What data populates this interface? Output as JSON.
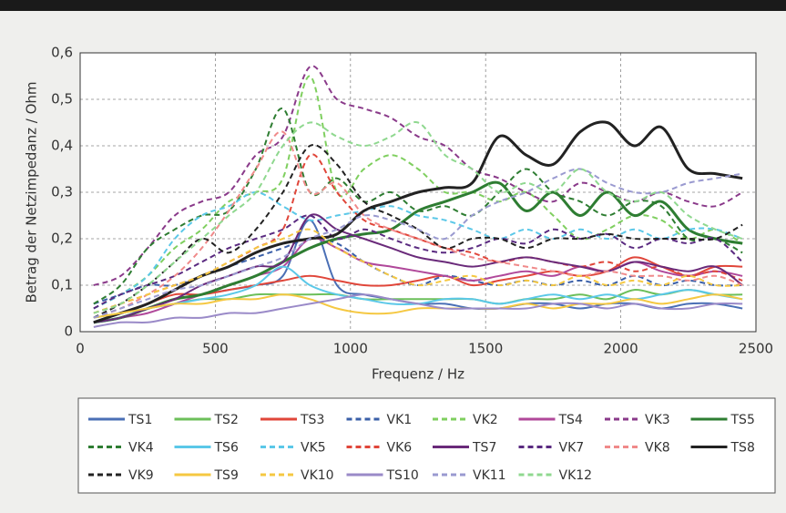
{
  "chart_data": {
    "type": "line",
    "xlabel": "Frequenz / Hz",
    "ylabel": "Betrag der Netzimpedanz / Ohm",
    "x": [
      50,
      150,
      250,
      350,
      450,
      550,
      650,
      750,
      850,
      950,
      1050,
      1150,
      1250,
      1350,
      1450,
      1550,
      1650,
      1750,
      1850,
      1950,
      2050,
      2150,
      2250,
      2350,
      2450
    ],
    "xlim": [
      0,
      2500
    ],
    "xticks": [
      0,
      500,
      1000,
      1500,
      2000,
      2500
    ],
    "ylim": [
      0,
      0.6
    ],
    "yticks": [
      0,
      {
        "value": 0.1,
        "label": "0,1"
      },
      {
        "value": 0.2,
        "label": "0,2"
      },
      {
        "value": 0.3,
        "label": "0,3"
      },
      {
        "value": 0.4,
        "label": "0,4"
      },
      {
        "value": 0.5,
        "label": "0,5"
      },
      {
        "value": 0.6,
        "label": "0,6"
      }
    ],
    "grid": true,
    "series": [
      {
        "name": "TS1",
        "color": "#4a6fb5",
        "dash": false,
        "values": [
          0.02,
          0.03,
          0.05,
          0.07,
          0.08,
          0.09,
          0.1,
          0.12,
          0.24,
          0.1,
          0.08,
          0.07,
          0.06,
          0.06,
          0.05,
          0.05,
          0.06,
          0.06,
          0.05,
          0.06,
          0.06,
          0.05,
          0.06,
          0.06,
          0.05
        ]
      },
      {
        "name": "TS2",
        "color": "#6cbf5a",
        "dash": false,
        "values": [
          0.03,
          0.04,
          0.05,
          0.06,
          0.07,
          0.07,
          0.08,
          0.08,
          0.08,
          0.08,
          0.07,
          0.07,
          0.07,
          0.07,
          0.07,
          0.06,
          0.07,
          0.07,
          0.08,
          0.07,
          0.09,
          0.08,
          0.09,
          0.08,
          0.08
        ]
      },
      {
        "name": "TS3",
        "color": "#e0463a",
        "dash": false,
        "values": [
          0.02,
          0.04,
          0.06,
          0.08,
          0.08,
          0.09,
          0.1,
          0.11,
          0.12,
          0.11,
          0.1,
          0.1,
          0.11,
          0.12,
          0.1,
          0.11,
          0.12,
          0.13,
          0.12,
          0.13,
          0.16,
          0.14,
          0.12,
          0.14,
          0.14
        ]
      },
      {
        "name": "VK1",
        "color": "#3a5fa8",
        "dash": true,
        "values": [
          0.06,
          0.08,
          0.1,
          0.1,
          0.12,
          0.14,
          0.16,
          0.18,
          0.2,
          0.19,
          0.15,
          0.12,
          0.1,
          0.12,
          0.11,
          0.1,
          0.11,
          0.1,
          0.11,
          0.1,
          0.12,
          0.1,
          0.11,
          0.1,
          0.1
        ]
      },
      {
        "name": "VK2",
        "color": "#7fcf5f",
        "dash": true,
        "values": [
          0.05,
          0.08,
          0.12,
          0.18,
          0.22,
          0.28,
          0.3,
          0.33,
          0.55,
          0.3,
          0.35,
          0.38,
          0.35,
          0.3,
          0.3,
          0.28,
          0.3,
          0.25,
          0.2,
          0.22,
          0.25,
          0.24,
          0.2,
          0.22,
          0.19
        ]
      },
      {
        "name": "TS4",
        "color": "#b0489a",
        "dash": false,
        "values": [
          0.02,
          0.03,
          0.04,
          0.06,
          0.08,
          0.1,
          0.12,
          0.14,
          0.2,
          0.18,
          0.15,
          0.14,
          0.13,
          0.12,
          0.11,
          0.12,
          0.13,
          0.12,
          0.14,
          0.13,
          0.15,
          0.13,
          0.12,
          0.13,
          0.12
        ]
      },
      {
        "name": "VK3",
        "color": "#8a3a8a",
        "dash": true,
        "values": [
          0.1,
          0.12,
          0.18,
          0.25,
          0.28,
          0.3,
          0.38,
          0.42,
          0.57,
          0.5,
          0.48,
          0.46,
          0.42,
          0.4,
          0.35,
          0.33,
          0.3,
          0.28,
          0.32,
          0.3,
          0.28,
          0.3,
          0.28,
          0.27,
          0.3
        ]
      },
      {
        "name": "TS5",
        "color": "#2e7d32",
        "dash": false,
        "values": [
          0.02,
          0.03,
          0.05,
          0.07,
          0.08,
          0.1,
          0.12,
          0.15,
          0.18,
          0.2,
          0.21,
          0.22,
          0.26,
          0.28,
          0.3,
          0.32,
          0.26,
          0.3,
          0.25,
          0.3,
          0.25,
          0.28,
          0.22,
          0.2,
          0.19
        ]
      },
      {
        "name": "VK4",
        "color": "#2e7d32",
        "dash": true,
        "values": [
          0.06,
          0.1,
          0.18,
          0.22,
          0.25,
          0.26,
          0.35,
          0.48,
          0.3,
          0.33,
          0.28,
          0.3,
          0.26,
          0.27,
          0.25,
          0.3,
          0.35,
          0.3,
          0.28,
          0.25,
          0.28,
          0.27,
          0.2,
          0.2,
          0.17
        ]
      },
      {
        "name": "TS6",
        "color": "#5bc8e8",
        "dash": false,
        "values": [
          0.02,
          0.03,
          0.05,
          0.06,
          0.07,
          0.08,
          0.1,
          0.14,
          0.1,
          0.08,
          0.07,
          0.06,
          0.06,
          0.07,
          0.07,
          0.06,
          0.07,
          0.08,
          0.07,
          0.08,
          0.07,
          0.08,
          0.09,
          0.08,
          0.07
        ]
      },
      {
        "name": "VK5",
        "color": "#5bc8e8",
        "dash": true,
        "values": [
          0.05,
          0.08,
          0.12,
          0.2,
          0.25,
          0.27,
          0.3,
          0.27,
          0.24,
          0.25,
          0.26,
          0.27,
          0.25,
          0.24,
          0.22,
          0.2,
          0.22,
          0.2,
          0.22,
          0.2,
          0.22,
          0.2,
          0.22,
          0.22,
          0.2
        ]
      },
      {
        "name": "VK6",
        "color": "#e0463a",
        "dash": true,
        "values": [
          0.04,
          0.06,
          0.08,
          0.1,
          0.12,
          0.15,
          0.18,
          0.22,
          0.38,
          0.3,
          0.24,
          0.22,
          0.2,
          0.18,
          0.17,
          0.15,
          0.16,
          0.15,
          0.14,
          0.15,
          0.13,
          0.14,
          0.12,
          0.13,
          0.11
        ]
      },
      {
        "name": "TS7",
        "color": "#6a2a7a",
        "dash": false,
        "values": [
          0.02,
          0.03,
          0.05,
          0.07,
          0.1,
          0.12,
          0.14,
          0.15,
          0.25,
          0.22,
          0.2,
          0.18,
          0.16,
          0.15,
          0.14,
          0.15,
          0.16,
          0.15,
          0.14,
          0.13,
          0.15,
          0.14,
          0.13,
          0.14,
          0.1
        ]
      },
      {
        "name": "VK7",
        "color": "#5a2a80",
        "dash": true,
        "values": [
          0.05,
          0.08,
          0.1,
          0.12,
          0.15,
          0.18,
          0.2,
          0.22,
          0.25,
          0.2,
          0.22,
          0.2,
          0.18,
          0.17,
          0.18,
          0.2,
          0.19,
          0.22,
          0.2,
          0.21,
          0.18,
          0.2,
          0.19,
          0.2,
          0.15
        ]
      },
      {
        "name": "VK8",
        "color": "#f08a8a",
        "dash": true,
        "values": [
          0.03,
          0.05,
          0.08,
          0.12,
          0.18,
          0.26,
          0.35,
          0.43,
          0.3,
          0.32,
          0.25,
          0.22,
          0.2,
          0.18,
          0.16,
          0.15,
          0.14,
          0.13,
          0.12,
          0.13,
          0.12,
          0.12,
          0.11,
          0.12,
          0.1
        ]
      },
      {
        "name": "TS8",
        "color": "#222222",
        "dash": false,
        "values": [
          0.02,
          0.04,
          0.06,
          0.09,
          0.12,
          0.14,
          0.17,
          0.19,
          0.2,
          0.21,
          0.26,
          0.28,
          0.3,
          0.31,
          0.32,
          0.42,
          0.38,
          0.36,
          0.43,
          0.45,
          0.4,
          0.44,
          0.35,
          0.34,
          0.33
        ]
      },
      {
        "name": "VK9",
        "color": "#222222",
        "dash": true,
        "values": [
          0.03,
          0.06,
          0.1,
          0.15,
          0.2,
          0.17,
          0.22,
          0.3,
          0.4,
          0.36,
          0.28,
          0.25,
          0.22,
          0.18,
          0.2,
          0.2,
          0.18,
          0.2,
          0.2,
          0.21,
          0.2,
          0.2,
          0.2,
          0.2,
          0.23
        ]
      },
      {
        "name": "TS9",
        "color": "#f5c842",
        "dash": false,
        "values": [
          0.03,
          0.04,
          0.05,
          0.06,
          0.06,
          0.07,
          0.07,
          0.08,
          0.07,
          0.05,
          0.04,
          0.04,
          0.05,
          0.05,
          0.05,
          0.05,
          0.06,
          0.05,
          0.06,
          0.06,
          0.07,
          0.06,
          0.07,
          0.08,
          0.07
        ]
      },
      {
        "name": "VK10",
        "color": "#f5c842",
        "dash": true,
        "values": [
          0.04,
          0.06,
          0.08,
          0.1,
          0.12,
          0.15,
          0.18,
          0.2,
          0.22,
          0.18,
          0.15,
          0.12,
          0.1,
          0.11,
          0.12,
          0.1,
          0.11,
          0.1,
          0.12,
          0.1,
          0.11,
          0.1,
          0.12,
          0.1,
          0.1
        ]
      },
      {
        "name": "TS10",
        "color": "#9a8ac8",
        "dash": false,
        "values": [
          0.01,
          0.02,
          0.02,
          0.03,
          0.03,
          0.04,
          0.04,
          0.05,
          0.06,
          0.07,
          0.08,
          0.07,
          0.06,
          0.05,
          0.05,
          0.05,
          0.05,
          0.06,
          0.06,
          0.05,
          0.06,
          0.05,
          0.05,
          0.06,
          0.06
        ]
      },
      {
        "name": "VK11",
        "color": "#9a9ad0",
        "dash": true,
        "values": [
          0.03,
          0.05,
          0.07,
          0.09,
          0.1,
          0.12,
          0.14,
          0.16,
          0.2,
          0.22,
          0.25,
          0.24,
          0.22,
          0.2,
          0.25,
          0.28,
          0.3,
          0.33,
          0.35,
          0.32,
          0.3,
          0.3,
          0.32,
          0.33,
          0.34
        ]
      },
      {
        "name": "VK12",
        "color": "#8fd88f",
        "dash": true,
        "values": [
          0.04,
          0.06,
          0.1,
          0.15,
          0.2,
          0.25,
          0.3,
          0.4,
          0.45,
          0.42,
          0.4,
          0.42,
          0.45,
          0.38,
          0.35,
          0.3,
          0.32,
          0.3,
          0.35,
          0.3,
          0.28,
          0.3,
          0.25,
          0.22,
          0.2
        ]
      }
    ]
  }
}
